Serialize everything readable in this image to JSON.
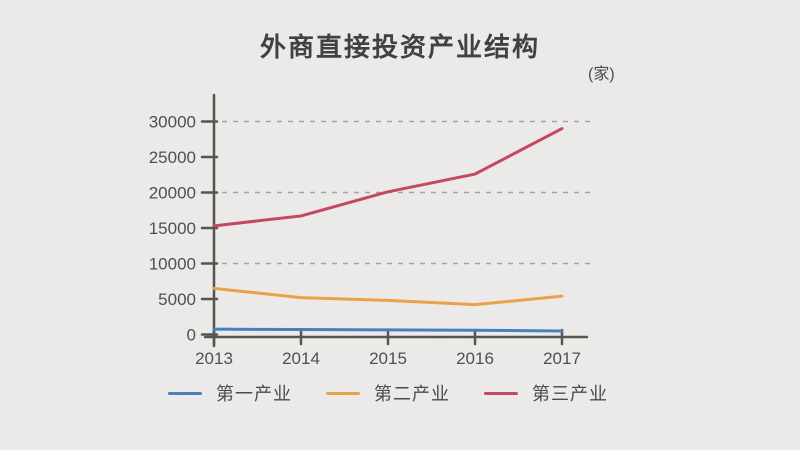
{
  "header": {
    "title": "外商直接投资产业结构",
    "unit_label": "(家)"
  },
  "chart_data": {
    "type": "line",
    "title": "外商直接投资产业结构",
    "unit": "家",
    "x": [
      2013,
      2014,
      2015,
      2016,
      2017
    ],
    "series": [
      {
        "name": "第一产业",
        "color": "#4180be",
        "values": [
          750,
          700,
          650,
          600,
          500
        ]
      },
      {
        "name": "第二产业",
        "color": "#eaa248",
        "values": [
          6500,
          5200,
          4800,
          4200,
          5400
        ]
      },
      {
        "name": "第三产业",
        "color": "#c4455e",
        "values": [
          15300,
          16700,
          20100,
          22600,
          29000
        ]
      }
    ],
    "ylim": [
      0,
      30000
    ],
    "yticks": [
      0,
      5000,
      10000,
      15000,
      20000,
      25000,
      30000
    ],
    "gridline_values": [
      10000,
      20000,
      30000
    ],
    "grid_style": "dashed",
    "legend_position": "bottom",
    "colors": {
      "axis": "#55524d",
      "grid": "#a3a3a1",
      "tick_label": "#4e4d4b",
      "background": "#edecea"
    }
  }
}
